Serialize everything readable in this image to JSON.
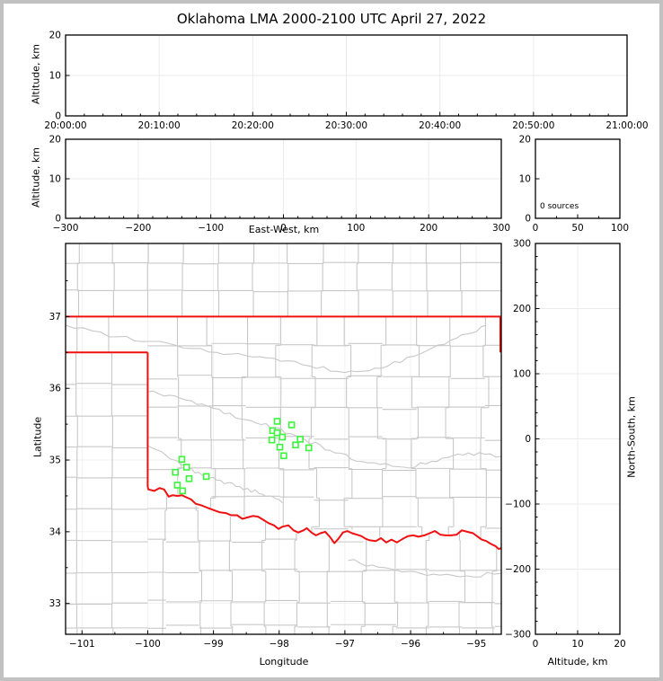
{
  "title": "Oklahoma LMA 2000-2100 UTC April 27, 2022",
  "colors": {
    "background": "#ffffff",
    "window_border": "#c1c1c1",
    "frame": "#000000",
    "grid": "#ebebeb",
    "map_grid": "#f1f1f1",
    "county": "#c8c8c8",
    "state_border": "#f01010",
    "station": "#3af53a",
    "text": "#000000"
  },
  "panels": {
    "time_height": {
      "ylabel": "Altitude, km",
      "ytick_labels": [
        "0",
        "10",
        "20"
      ],
      "xtick_labels": [
        "20:00:00",
        "20:10:00",
        "20:20:00",
        "20:30:00",
        "20:40:00",
        "20:50:00",
        "21:00:00"
      ]
    },
    "ew_height": {
      "ylabel": "Altitude, km",
      "xlabel": "East-West, km",
      "ytick_labels": [
        "0",
        "10",
        "20"
      ],
      "xtick_labels": [
        "−300",
        "−200",
        "−100",
        "0",
        "100",
        "200",
        "300"
      ]
    },
    "histogram": {
      "annotation": "0 sources",
      "ytick_labels": [
        "0",
        "10",
        "20"
      ],
      "xtick_labels": [
        "0",
        "50",
        "100"
      ]
    },
    "map": {
      "xlabel": "Longitude",
      "ylabel": "Latitude",
      "xtick_labels": [
        "−101",
        "−100",
        "−99",
        "−98",
        "−97",
        "−96",
        "−95"
      ],
      "ytick_labels": [
        "33",
        "34",
        "35",
        "36",
        "37"
      ]
    },
    "ns_height": {
      "xlabel": "Altitude, km",
      "ylabel": "North-South, km",
      "xtick_labels": [
        "0",
        "10",
        "20"
      ],
      "ytick_labels": [
        "300",
        "200",
        "100",
        "0",
        "−100",
        "−200",
        "−300"
      ]
    }
  },
  "chart_data": [
    {
      "type": "scatter",
      "panel": "altitude-vs-time",
      "title": "Oklahoma LMA 2000-2100 UTC April 27, 2022",
      "ylabel": "Altitude, km",
      "xticks": [
        "20:00:00",
        "20:10:00",
        "20:20:00",
        "20:30:00",
        "20:40:00",
        "20:50:00",
        "21:00:00"
      ],
      "ylim": [
        0,
        20
      ],
      "yticks": [
        0,
        10,
        20
      ],
      "grid": true,
      "series": [
        {
          "name": "lma-sources",
          "x": [],
          "y": []
        }
      ]
    },
    {
      "type": "scatter",
      "panel": "altitude-vs-east-west",
      "xlabel": "East-West, km",
      "ylabel": "Altitude, km",
      "xlim": [
        -300,
        300
      ],
      "ylim": [
        0,
        20
      ],
      "xticks": [
        -300,
        -200,
        -100,
        0,
        100,
        200,
        300
      ],
      "yticks": [
        0,
        10,
        20
      ],
      "grid": true,
      "series": [
        {
          "name": "lma-sources",
          "x": [],
          "y": []
        }
      ]
    },
    {
      "type": "histogram",
      "panel": "source-count-vs-altitude",
      "annotation": "0 sources",
      "xlim": [
        0,
        100
      ],
      "ylim": [
        0,
        20
      ],
      "xticks": [
        0,
        50,
        100
      ],
      "yticks": [
        0,
        10,
        20
      ],
      "grid": false,
      "values": []
    },
    {
      "type": "scatter",
      "panel": "plan-view-map",
      "xlabel": "Longitude",
      "ylabel": "Latitude",
      "xlim": [
        -101.25,
        -94.62
      ],
      "ylim": [
        32.57,
        38.02
      ],
      "xticks": [
        -101,
        -100,
        -99,
        -98,
        -97,
        -96,
        -95
      ],
      "yticks": [
        33,
        34,
        35,
        36,
        37
      ],
      "grid": true,
      "series": [
        {
          "name": "lma-stations",
          "marker": "open-square",
          "color": "#3af53a",
          "points": [
            [
              -98.03,
              35.54
            ],
            [
              -97.81,
              35.49
            ],
            [
              -98.1,
              35.41
            ],
            [
              -98.03,
              35.38
            ],
            [
              -97.95,
              35.32
            ],
            [
              -98.11,
              35.28
            ],
            [
              -97.68,
              35.29
            ],
            [
              -97.75,
              35.21
            ],
            [
              -97.99,
              35.18
            ],
            [
              -97.55,
              35.17
            ],
            [
              -97.93,
              35.06
            ],
            [
              -99.48,
              35.01
            ],
            [
              -99.41,
              34.9
            ],
            [
              -99.58,
              34.83
            ],
            [
              -99.37,
              34.74
            ],
            [
              -99.11,
              34.77
            ],
            [
              -99.55,
              34.65
            ],
            [
              -99.47,
              34.57
            ]
          ]
        },
        {
          "name": "lma-sources",
          "points": []
        }
      ]
    },
    {
      "type": "scatter",
      "panel": "north-south-vs-altitude",
      "xlabel": "Altitude, km",
      "ylabel": "North-South, km",
      "xlim": [
        0,
        20
      ],
      "ylim": [
        -300,
        300
      ],
      "xticks": [
        0,
        10,
        20
      ],
      "yticks": [
        -300,
        -200,
        -100,
        0,
        100,
        200,
        300
      ],
      "grid": true,
      "series": [
        {
          "name": "lma-sources",
          "x": [],
          "y": []
        }
      ]
    }
  ],
  "map_data": {
    "state_border_segments": [
      [
        [
          -101.25,
          37.0
        ],
        [
          -94.62,
          37.0
        ]
      ],
      [
        [
          -94.635,
          37.0
        ],
        [
          -94.635,
          36.5
        ]
      ],
      [
        [
          -101.25,
          36.5
        ],
        [
          -100.0,
          36.5
        ]
      ]
    ],
    "red_river": [
      [
        -100.0,
        36.5
      ],
      [
        -100.0,
        34.63
      ],
      [
        -99.99,
        34.59
      ],
      [
        -99.9,
        34.57
      ],
      [
        -99.82,
        34.61
      ],
      [
        -99.75,
        34.59
      ],
      [
        -99.68,
        34.49
      ],
      [
        -99.62,
        34.51
      ],
      [
        -99.55,
        34.5
      ],
      [
        -99.48,
        34.51
      ],
      [
        -99.41,
        34.48
      ],
      [
        -99.34,
        34.45
      ],
      [
        -99.27,
        34.39
      ],
      [
        -99.19,
        34.37
      ],
      [
        -99.08,
        34.33
      ],
      [
        -98.99,
        34.3
      ],
      [
        -98.9,
        34.27
      ],
      [
        -98.81,
        34.26
      ],
      [
        -98.73,
        34.23
      ],
      [
        -98.64,
        34.23
      ],
      [
        -98.56,
        34.18
      ],
      [
        -98.48,
        34.2
      ],
      [
        -98.4,
        34.22
      ],
      [
        -98.32,
        34.21
      ],
      [
        -98.23,
        34.16
      ],
      [
        -98.16,
        34.12
      ],
      [
        -98.08,
        34.09
      ],
      [
        -98.01,
        34.04
      ],
      [
        -97.95,
        34.07
      ],
      [
        -97.86,
        34.09
      ],
      [
        -97.78,
        34.02
      ],
      [
        -97.71,
        33.99
      ],
      [
        -97.63,
        34.02
      ],
      [
        -97.58,
        34.05
      ],
      [
        -97.51,
        33.99
      ],
      [
        -97.44,
        33.95
      ],
      [
        -97.37,
        33.98
      ],
      [
        -97.3,
        34.0
      ],
      [
        -97.23,
        33.93
      ],
      [
        -97.16,
        33.84
      ],
      [
        -97.1,
        33.9
      ],
      [
        -97.03,
        33.99
      ],
      [
        -96.96,
        34.01
      ],
      [
        -96.89,
        33.98
      ],
      [
        -96.82,
        33.96
      ],
      [
        -96.75,
        33.94
      ],
      [
        -96.68,
        33.9
      ],
      [
        -96.62,
        33.88
      ],
      [
        -96.53,
        33.87
      ],
      [
        -96.45,
        33.91
      ],
      [
        -96.37,
        33.85
      ],
      [
        -96.29,
        33.89
      ],
      [
        -96.21,
        33.85
      ],
      [
        -96.12,
        33.9
      ],
      [
        -96.04,
        33.94
      ],
      [
        -95.96,
        33.95
      ],
      [
        -95.88,
        33.93
      ],
      [
        -95.79,
        33.95
      ],
      [
        -95.71,
        33.98
      ],
      [
        -95.63,
        34.01
      ],
      [
        -95.55,
        33.96
      ],
      [
        -95.47,
        33.95
      ],
      [
        -95.38,
        33.95
      ],
      [
        -95.3,
        33.96
      ],
      [
        -95.22,
        34.02
      ],
      [
        -95.14,
        34.0
      ],
      [
        -95.05,
        33.98
      ],
      [
        -94.99,
        33.94
      ],
      [
        -94.92,
        33.89
      ],
      [
        -94.85,
        33.87
      ],
      [
        -94.78,
        33.83
      ],
      [
        -94.71,
        33.8
      ],
      [
        -94.66,
        33.76
      ],
      [
        -94.62,
        33.77
      ]
    ],
    "rivers": [
      [
        [
          -101.25,
          36.88
        ],
        [
          -100.45,
          36.72
        ],
        [
          -99.7,
          36.63
        ],
        [
          -98.95,
          36.5
        ],
        [
          -98.3,
          36.44
        ],
        [
          -97.65,
          36.33
        ],
        [
          -97.0,
          36.22
        ],
        [
          -96.45,
          36.28
        ],
        [
          -95.85,
          36.48
        ],
        [
          -95.3,
          36.7
        ],
        [
          -94.85,
          36.88
        ]
      ],
      [
        [
          -100.0,
          35.95
        ],
        [
          -99.5,
          35.86
        ],
        [
          -99.0,
          35.72
        ],
        [
          -98.5,
          35.56
        ],
        [
          -98.05,
          35.45
        ],
        [
          -97.6,
          35.28
        ],
        [
          -97.15,
          35.1
        ],
        [
          -96.65,
          34.96
        ],
        [
          -96.1,
          34.9
        ],
        [
          -95.6,
          34.98
        ],
        [
          -95.12,
          35.1
        ],
        [
          -94.62,
          35.05
        ]
      ],
      [
        [
          -96.95,
          33.6
        ],
        [
          -96.4,
          33.5
        ],
        [
          -95.85,
          33.42
        ],
        [
          -95.25,
          33.37
        ],
        [
          -94.62,
          33.42
        ]
      ],
      [
        [
          -100.0,
          35.2
        ],
        [
          -99.6,
          35.0
        ],
        [
          -99.28,
          34.82
        ],
        [
          -98.95,
          34.72
        ],
        [
          -98.6,
          34.63
        ],
        [
          -98.25,
          34.52
        ],
        [
          -97.95,
          34.4
        ]
      ]
    ],
    "county_regions": [
      {
        "name": "kansas",
        "lon0": -101.25,
        "lon1": -94.62,
        "lat0": 37.0,
        "lat1": 38.02,
        "col_start": -101.05,
        "col_step": 0.53,
        "rows": [
          37.36,
          37.74
        ],
        "jitter": 0.02,
        "jitter_y": 0.015,
        "seed": 3
      },
      {
        "name": "oklahoma-panhandle",
        "lon0": -101.25,
        "lon1": -100.0,
        "lat0": 36.5,
        "lat1": 37.0,
        "cols": [
          -101.08,
          -100.6
        ],
        "rows": [],
        "jitter": 0.01,
        "jitter_y": 0.01,
        "seed": 5
      },
      {
        "name": "texas-panhandle",
        "lon0": -101.25,
        "lon1": -100.0,
        "lat0": 32.57,
        "lat1": 36.5,
        "cols": [
          -101.08,
          -100.54
        ],
        "rows": [
          36.06,
          35.62,
          35.18,
          34.75,
          34.31,
          33.87,
          33.43,
          33.0,
          32.66
        ],
        "jitter": 0.012,
        "jitter_y": 0.012,
        "seed": 7
      },
      {
        "name": "oklahoma",
        "lon0": -100.0,
        "lon1": -94.62,
        "lat0": "river",
        "lat1": 37.0,
        "col_start": -99.55,
        "col_step": 0.52,
        "rows": [
          36.6,
          36.16,
          35.73,
          35.3,
          34.88,
          34.47,
          34.07,
          33.67
        ],
        "jitter": 0.085,
        "jitter_y": 0.03,
        "seed": 11
      },
      {
        "name": "texas-south",
        "lon0": -100.0,
        "lon1": -94.62,
        "lat0": 32.57,
        "lat1": "river",
        "col_start": -99.72,
        "col_step": 0.5,
        "rows": [
          34.3,
          33.88,
          33.45,
          33.02,
          32.68
        ],
        "jitter": 0.055,
        "jitter_y": 0.03,
        "seed": 13
      }
    ]
  }
}
